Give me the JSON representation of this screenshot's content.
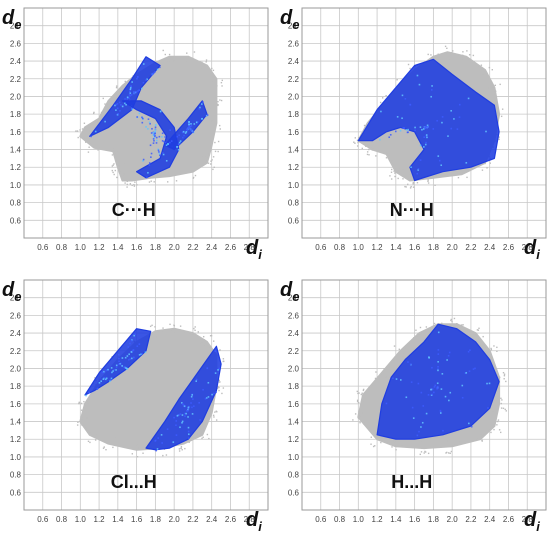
{
  "chart_data": [
    {
      "type": "heatmap",
      "caption": "C···H",
      "xlabel": "d",
      "xlabel_sub": "i",
      "ylabel": "d",
      "ylabel_sub": "e",
      "xlim": [
        0.4,
        3.0
      ],
      "ylim": [
        0.4,
        3.0
      ],
      "x_ticks": [
        "0.6",
        "0.8",
        "1.0",
        "1.2",
        "1.4",
        "1.6",
        "1.8",
        "2.0",
        "2.2",
        "2.4",
        "2.6",
        "2.8"
      ],
      "y_ticks": [
        "0.6",
        "0.8",
        "1.0",
        "1.2",
        "1.4",
        "1.6",
        "1.8",
        "2.0",
        "2.2",
        "2.4",
        "2.6",
        "2.8"
      ],
      "grid": true,
      "colors": {
        "full_print": "#bdbdbd",
        "contact": "#1f3de0",
        "highlight": "#62c6ff"
      },
      "full_print_outline": [
        [
          1.0,
          1.55
        ],
        [
          1.05,
          1.65
        ],
        [
          1.2,
          1.75
        ],
        [
          1.3,
          1.95
        ],
        [
          1.45,
          2.12
        ],
        [
          1.6,
          2.25
        ],
        [
          1.8,
          2.38
        ],
        [
          1.95,
          2.45
        ],
        [
          2.15,
          2.45
        ],
        [
          2.35,
          2.35
        ],
        [
          2.45,
          2.2
        ],
        [
          2.45,
          1.95
        ],
        [
          2.45,
          1.7
        ],
        [
          2.4,
          1.45
        ],
        [
          2.35,
          1.25
        ],
        [
          2.2,
          1.15
        ],
        [
          1.95,
          1.1
        ],
        [
          1.75,
          1.08
        ],
        [
          1.55,
          1.05
        ],
        [
          1.45,
          1.05
        ],
        [
          1.4,
          1.2
        ],
        [
          1.35,
          1.38
        ],
        [
          1.15,
          1.42
        ]
      ],
      "contact_regions": [
        [
          [
            1.1,
            1.55
          ],
          [
            1.35,
            1.9
          ],
          [
            1.55,
            2.2
          ],
          [
            1.7,
            2.45
          ],
          [
            1.85,
            2.35
          ],
          [
            1.65,
            2.1
          ],
          [
            1.55,
            1.85
          ],
          [
            1.3,
            1.65
          ]
        ],
        [
          [
            1.45,
            1.95
          ],
          [
            1.65,
            1.95
          ],
          [
            1.85,
            1.85
          ],
          [
            2.0,
            1.65
          ],
          [
            2.05,
            1.4
          ],
          [
            1.95,
            1.2
          ],
          [
            1.7,
            1.08
          ],
          [
            1.6,
            1.15
          ],
          [
            1.85,
            1.3
          ],
          [
            1.92,
            1.55
          ],
          [
            1.8,
            1.75
          ],
          [
            1.6,
            1.85
          ]
        ],
        [
          [
            1.9,
            1.45
          ],
          [
            2.15,
            1.75
          ],
          [
            2.3,
            1.95
          ],
          [
            2.35,
            1.8
          ],
          [
            2.2,
            1.6
          ],
          [
            2.0,
            1.4
          ]
        ]
      ]
    },
    {
      "type": "heatmap",
      "caption": "N···H",
      "xlabel": "d",
      "xlabel_sub": "i",
      "ylabel": "d",
      "ylabel_sub": "e",
      "xlim": [
        0.4,
        3.0
      ],
      "ylim": [
        0.4,
        3.0
      ],
      "x_ticks": [
        "0.6",
        "0.8",
        "1.0",
        "1.2",
        "1.4",
        "1.6",
        "1.8",
        "2.0",
        "2.2",
        "2.4",
        "2.6",
        "2.8"
      ],
      "y_ticks": [
        "0.6",
        "0.8",
        "1.0",
        "1.2",
        "1.4",
        "1.6",
        "1.8",
        "2.0",
        "2.2",
        "2.4",
        "2.6",
        "2.8"
      ],
      "grid": true,
      "colors": {
        "full_print": "#bdbdbd",
        "contact": "#1f3de0",
        "highlight": "#62c6ff"
      },
      "full_print_outline": [
        [
          1.0,
          1.5
        ],
        [
          1.1,
          1.7
        ],
        [
          1.3,
          1.95
        ],
        [
          1.45,
          2.15
        ],
        [
          1.6,
          2.3
        ],
        [
          1.8,
          2.45
        ],
        [
          1.95,
          2.5
        ],
        [
          2.15,
          2.45
        ],
        [
          2.35,
          2.3
        ],
        [
          2.45,
          2.1
        ],
        [
          2.5,
          1.8
        ],
        [
          2.45,
          1.5
        ],
        [
          2.35,
          1.25
        ],
        [
          2.1,
          1.12
        ],
        [
          1.8,
          1.08
        ],
        [
          1.55,
          1.05
        ],
        [
          1.4,
          1.15
        ],
        [
          1.3,
          1.35
        ],
        [
          1.15,
          1.4
        ]
      ],
      "contact_regions": [
        [
          [
            1.0,
            1.5
          ],
          [
            1.2,
            1.85
          ],
          [
            1.4,
            2.1
          ],
          [
            1.6,
            2.35
          ],
          [
            1.8,
            2.42
          ],
          [
            2.0,
            2.25
          ],
          [
            2.25,
            2.05
          ],
          [
            2.45,
            1.9
          ],
          [
            2.5,
            1.6
          ],
          [
            2.45,
            1.3
          ],
          [
            2.2,
            1.2
          ],
          [
            1.9,
            1.15
          ],
          [
            1.6,
            1.05
          ],
          [
            1.55,
            1.2
          ],
          [
            1.7,
            1.4
          ],
          [
            1.6,
            1.6
          ],
          [
            1.45,
            1.65
          ],
          [
            1.3,
            1.6
          ],
          [
            1.15,
            1.5
          ]
        ]
      ]
    },
    {
      "type": "heatmap",
      "caption": "Cl...H",
      "xlabel": "d",
      "xlabel_sub": "i",
      "ylabel": "d",
      "ylabel_sub": "e",
      "xlim": [
        0.4,
        3.0
      ],
      "ylim": [
        0.4,
        3.0
      ],
      "x_ticks": [
        "0.6",
        "0.8",
        "1.0",
        "1.2",
        "1.4",
        "1.6",
        "1.8",
        "2.0",
        "2.2",
        "2.4",
        "2.6",
        "2.8"
      ],
      "y_ticks": [
        "0.6",
        "0.8",
        "1.0",
        "1.2",
        "1.4",
        "1.6",
        "1.8",
        "2.0",
        "2.2",
        "2.4",
        "2.6",
        "2.8"
      ],
      "grid": true,
      "colors": {
        "full_print": "#bdbdbd",
        "contact": "#1f3de0",
        "highlight": "#62c6ff"
      },
      "full_print_outline": [
        [
          1.0,
          1.4
        ],
        [
          1.05,
          1.6
        ],
        [
          1.2,
          1.85
        ],
        [
          1.4,
          2.1
        ],
        [
          1.6,
          2.3
        ],
        [
          1.8,
          2.42
        ],
        [
          2.0,
          2.45
        ],
        [
          2.2,
          2.4
        ],
        [
          2.35,
          2.3
        ],
        [
          2.45,
          2.15
        ],
        [
          2.45,
          1.8
        ],
        [
          2.4,
          1.5
        ],
        [
          2.3,
          1.25
        ],
        [
          2.1,
          1.15
        ],
        [
          1.85,
          1.1
        ],
        [
          1.6,
          1.08
        ],
        [
          1.3,
          1.15
        ],
        [
          1.1,
          1.25
        ]
      ],
      "contact_regions": [
        [
          [
            1.05,
            1.7
          ],
          [
            1.2,
            1.95
          ],
          [
            1.4,
            2.2
          ],
          [
            1.6,
            2.45
          ],
          [
            1.75,
            2.42
          ],
          [
            1.7,
            2.2
          ],
          [
            1.5,
            2.0
          ],
          [
            1.3,
            1.85
          ],
          [
            1.15,
            1.75
          ]
        ],
        [
          [
            1.7,
            1.1
          ],
          [
            1.9,
            1.4
          ],
          [
            2.05,
            1.65
          ],
          [
            2.25,
            1.95
          ],
          [
            2.45,
            2.25
          ],
          [
            2.5,
            2.05
          ],
          [
            2.45,
            1.75
          ],
          [
            2.3,
            1.4
          ],
          [
            2.15,
            1.2
          ],
          [
            1.95,
            1.1
          ],
          [
            1.8,
            1.08
          ]
        ]
      ]
    },
    {
      "type": "heatmap",
      "caption": "H...H",
      "xlabel": "d",
      "xlabel_sub": "i",
      "ylabel": "d",
      "ylabel_sub": "e",
      "xlim": [
        0.4,
        3.0
      ],
      "ylim": [
        0.4,
        3.0
      ],
      "x_ticks": [
        "0.6",
        "0.8",
        "1.0",
        "1.2",
        "1.4",
        "1.6",
        "1.8",
        "2.0",
        "2.2",
        "2.4",
        "2.6",
        "2.8"
      ],
      "y_ticks": [
        "0.6",
        "0.8",
        "1.0",
        "1.2",
        "1.4",
        "1.6",
        "1.8",
        "2.0",
        "2.2",
        "2.4",
        "2.6",
        "2.8"
      ],
      "grid": true,
      "colors": {
        "full_print": "#bdbdbd",
        "contact": "#1f3de0",
        "highlight": "#62c6ff"
      },
      "full_print_outline": [
        [
          1.0,
          1.45
        ],
        [
          1.05,
          1.7
        ],
        [
          1.25,
          1.95
        ],
        [
          1.45,
          2.2
        ],
        [
          1.65,
          2.4
        ],
        [
          1.85,
          2.5
        ],
        [
          2.05,
          2.5
        ],
        [
          2.25,
          2.4
        ],
        [
          2.4,
          2.2
        ],
        [
          2.5,
          1.9
        ],
        [
          2.5,
          1.6
        ],
        [
          2.45,
          1.35
        ],
        [
          2.3,
          1.2
        ],
        [
          2.0,
          1.12
        ],
        [
          1.7,
          1.1
        ],
        [
          1.4,
          1.12
        ],
        [
          1.2,
          1.2
        ]
      ],
      "contact_regions": [
        [
          [
            1.2,
            1.25
          ],
          [
            1.25,
            1.6
          ],
          [
            1.35,
            1.9
          ],
          [
            1.5,
            2.1
          ],
          [
            1.7,
            2.3
          ],
          [
            1.85,
            2.5
          ],
          [
            2.05,
            2.45
          ],
          [
            2.25,
            2.3
          ],
          [
            2.4,
            2.1
          ],
          [
            2.5,
            1.85
          ],
          [
            2.4,
            1.55
          ],
          [
            2.2,
            1.35
          ],
          [
            1.9,
            1.25
          ],
          [
            1.6,
            1.2
          ],
          [
            1.4,
            1.2
          ]
        ]
      ]
    }
  ]
}
